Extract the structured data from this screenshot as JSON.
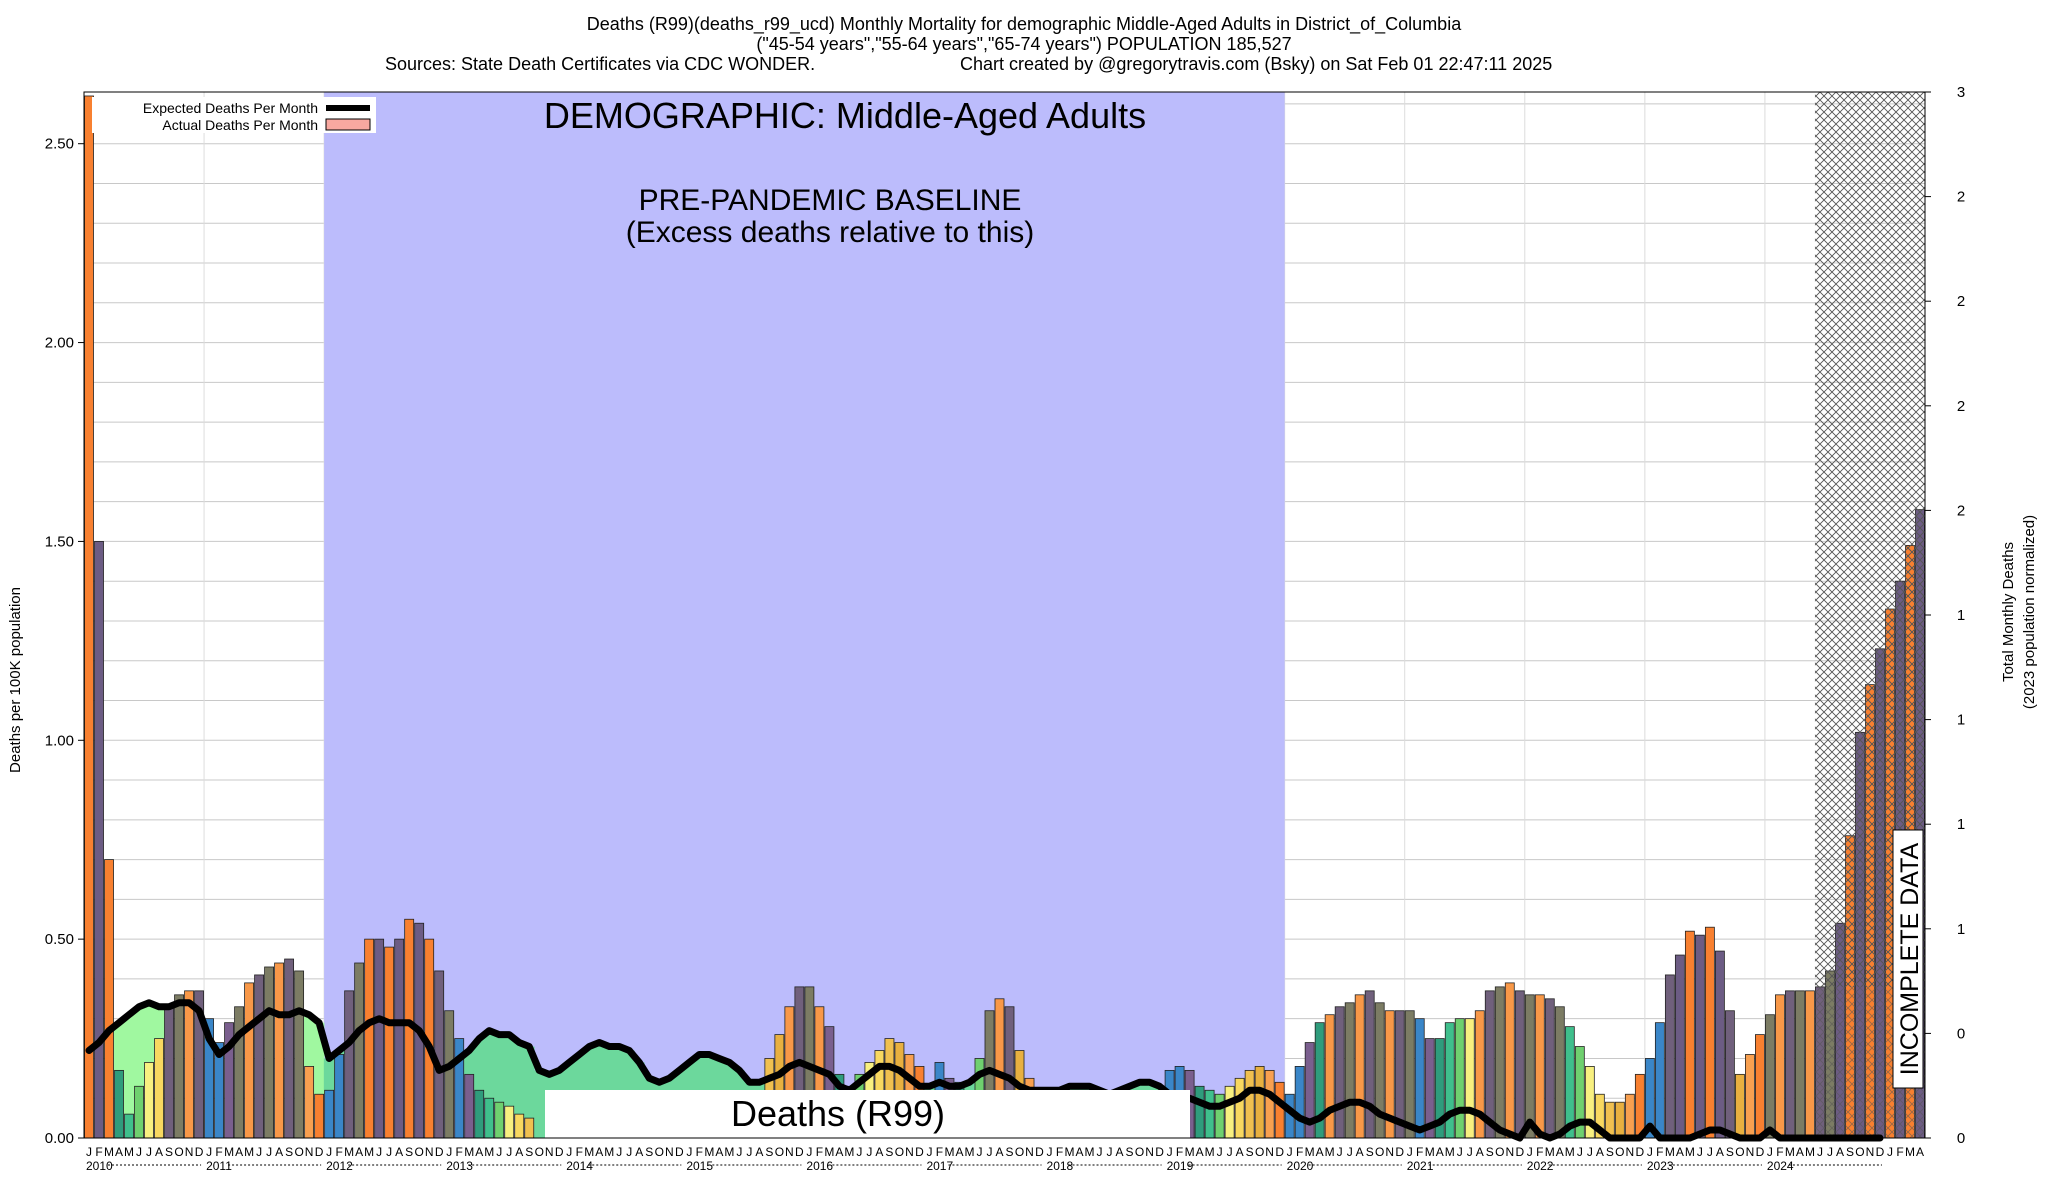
{
  "header": {
    "line1": "Deaths (R99)(deaths_r99_ucd) Monthly Mortality for demographic Middle-Aged Adults in District_of_Columbia",
    "line2": "(\"45-54 years\",\"55-64 years\",\"65-74 years\") POPULATION 185,527",
    "line3_left": "Sources: State Death Certificates via CDC WONDER.",
    "line3_right": "Chart created by @gregorytravis.com (Bsky) on Sat Feb 01 22:47:11 2025"
  },
  "chart_data": {
    "type": "bar",
    "ylabel_left": "Deaths per 100K population",
    "ylabel_right_1": "Total Monthly Deaths",
    "ylabel_right_2": "(2023 population normalized)",
    "ylim": [
      0,
      2.63
    ],
    "yticks_left": [
      "0.00",
      "0.50",
      "1.00",
      "1.50",
      "2.00",
      "2.50"
    ],
    "yticks_right": [
      "0",
      "0",
      "1",
      "1",
      "1",
      "1",
      "2",
      "2",
      "2",
      "2",
      "3"
    ],
    "years": [
      "2010",
      "2011",
      "2012",
      "2013",
      "2014",
      "2015",
      "2016",
      "2017",
      "2018",
      "2019",
      "2020",
      "2021",
      "2022",
      "2023",
      "2024"
    ],
    "month_letters": [
      "J",
      "F",
      "M",
      "A",
      "M",
      "J",
      "J",
      "A",
      "S",
      "O",
      "N",
      "D"
    ],
    "legend": {
      "position": "top-left",
      "expected_label": "Expected Deaths Per Month",
      "actual_label": "Actual Deaths Per Month"
    },
    "annotations": {
      "demographic": "DEMOGRAPHIC: Middle-Aged Adults",
      "baseline_1": "PRE-PANDEMIC BASELINE",
      "baseline_2": "(Excess deaths relative to this)",
      "cause_box": "Deaths (R99)",
      "incomplete": "INCOMPLETE DATA"
    },
    "baseline_start": "2012-01",
    "baseline_end": "2019-12",
    "incomplete_from": "2024-06",
    "actual": [
      2.62,
      1.5,
      0.7,
      0.17,
      0.06,
      0.13,
      0.19,
      0.25,
      0.33,
      0.36,
      0.37,
      0.37,
      0.3,
      0.24,
      0.29,
      0.33,
      0.39,
      0.41,
      0.43,
      0.44,
      0.45,
      0.42,
      0.18,
      0.11,
      0.12,
      0.21,
      0.37,
      0.44,
      0.5,
      0.5,
      0.48,
      0.5,
      0.55,
      0.54,
      0.5,
      0.42,
      0.32,
      0.25,
      0.16,
      0.12,
      0.1,
      0.09,
      0.08,
      0.06,
      0.05,
      0.0,
      0.0,
      0.0,
      0.0,
      0.0,
      0.0,
      0.0,
      0.0,
      0.0,
      0.0,
      0.0,
      0.0,
      0.0,
      0.0,
      0.0,
      0.0,
      0.0,
      0.0,
      0.0,
      0.0,
      0.0,
      0.08,
      0.11,
      0.2,
      0.26,
      0.33,
      0.38,
      0.38,
      0.33,
      0.28,
      0.16,
      0.13,
      0.16,
      0.19,
      0.22,
      0.25,
      0.24,
      0.21,
      0.18,
      0.08,
      0.19,
      0.15,
      0.14,
      0.1,
      0.2,
      0.32,
      0.35,
      0.33,
      0.22,
      0.15,
      0.12,
      0.0,
      0.0,
      0.0,
      0.0,
      0.0,
      0.0,
      0.0,
      0.0,
      0.0,
      0.0,
      0.0,
      0.0,
      0.17,
      0.18,
      0.17,
      0.13,
      0.12,
      0.11,
      0.13,
      0.15,
      0.17,
      0.18,
      0.17,
      0.14,
      0.11,
      0.18,
      0.24,
      0.29,
      0.31,
      0.33,
      0.34,
      0.36,
      0.37,
      0.34,
      0.32,
      0.32,
      0.32,
      0.3,
      0.25,
      0.25,
      0.29,
      0.3,
      0.3,
      0.32,
      0.37,
      0.38,
      0.39,
      0.37,
      0.36,
      0.36,
      0.35,
      0.33,
      0.28,
      0.23,
      0.18,
      0.11,
      0.09,
      0.09,
      0.11,
      0.16,
      0.2,
      0.29,
      0.41,
      0.46,
      0.52,
      0.51,
      0.53,
      0.47,
      0.32,
      0.16,
      0.21,
      0.26,
      0.31,
      0.36,
      0.37,
      0.37,
      0.37,
      0.38,
      0.42,
      0.54,
      0.76,
      1.02,
      1.14,
      1.23,
      1.33,
      1.4,
      1.49,
      1.58
    ],
    "expected": [
      0.22,
      0.24,
      0.27,
      0.29,
      0.31,
      0.33,
      0.34,
      0.33,
      0.33,
      0.34,
      0.34,
      0.32,
      0.25,
      0.21,
      0.23,
      0.26,
      0.28,
      0.3,
      0.32,
      0.31,
      0.31,
      0.32,
      0.31,
      0.29,
      0.2,
      0.22,
      0.24,
      0.27,
      0.29,
      0.3,
      0.29,
      0.29,
      0.29,
      0.27,
      0.23,
      0.17,
      0.18,
      0.2,
      0.22,
      0.25,
      0.27,
      0.26,
      0.26,
      0.24,
      0.23,
      0.17,
      0.16,
      0.17,
      0.19,
      0.21,
      0.23,
      0.24,
      0.23,
      0.23,
      0.22,
      0.19,
      0.15,
      0.14,
      0.15,
      0.17,
      0.19,
      0.21,
      0.21,
      0.2,
      0.19,
      0.17,
      0.14,
      0.14,
      0.15,
      0.16,
      0.18,
      0.19,
      0.18,
      0.17,
      0.16,
      0.13,
      0.12,
      0.14,
      0.16,
      0.18,
      0.18,
      0.17,
      0.15,
      0.13,
      0.13,
      0.14,
      0.13,
      0.13,
      0.14,
      0.16,
      0.17,
      0.16,
      0.15,
      0.13,
      0.12,
      0.12,
      0.12,
      0.12,
      0.13,
      0.13,
      0.13,
      0.12,
      0.11,
      0.12,
      0.13,
      0.14,
      0.14,
      0.13,
      0.11,
      0.1,
      0.1,
      0.09,
      0.08,
      0.08,
      0.09,
      0.1,
      0.12,
      0.12,
      0.11,
      0.09,
      0.07,
      0.05,
      0.04,
      0.05,
      0.07,
      0.08,
      0.09,
      0.09,
      0.08,
      0.06,
      0.05,
      0.04,
      0.03,
      0.02,
      0.03,
      0.04,
      0.06,
      0.07,
      0.07,
      0.06,
      0.04,
      0.02,
      0.01,
      0.0,
      0.04,
      0.01,
      0.0,
      0.01,
      0.03,
      0.04,
      0.04,
      0.02,
      0.0,
      0.0,
      0.0,
      0.0,
      0.03,
      0.0,
      0.0,
      0.0,
      0.0,
      0.01,
      0.02,
      0.02,
      0.01,
      0.0,
      0.0,
      0.0,
      0.02,
      0.0,
      0.0,
      0.0,
      0.0,
      0.0,
      0.0,
      0.0,
      0.0,
      0.0,
      0.0,
      0.0
    ]
  }
}
